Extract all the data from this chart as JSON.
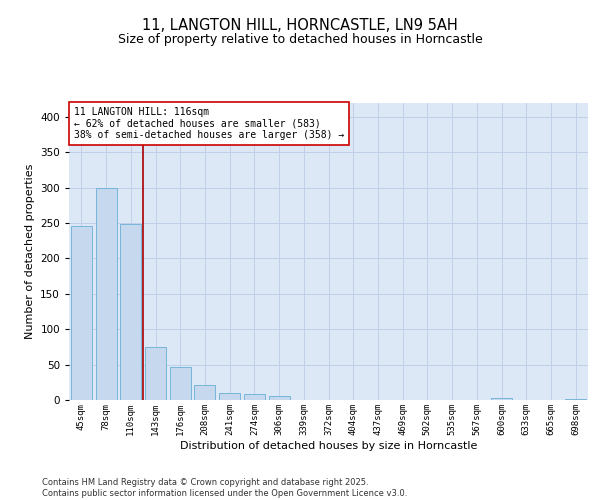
{
  "title_line1": "11, LANGTON HILL, HORNCASTLE, LN9 5AH",
  "title_line2": "Size of property relative to detached houses in Horncastle",
  "xlabel": "Distribution of detached houses by size in Horncastle",
  "ylabel": "Number of detached properties",
  "categories": [
    "45sqm",
    "78sqm",
    "110sqm",
    "143sqm",
    "176sqm",
    "208sqm",
    "241sqm",
    "274sqm",
    "306sqm",
    "339sqm",
    "372sqm",
    "404sqm",
    "437sqm",
    "469sqm",
    "502sqm",
    "535sqm",
    "567sqm",
    "600sqm",
    "633sqm",
    "665sqm",
    "698sqm"
  ],
  "values": [
    245,
    300,
    248,
    75,
    46,
    21,
    10,
    8,
    5,
    0,
    0,
    0,
    0,
    0,
    0,
    0,
    0,
    3,
    0,
    0,
    2
  ],
  "bar_color": "#c5d8ee",
  "bar_edge_color": "#6aaed6",
  "vline_color": "#aa0000",
  "annotation_text": "11 LANGTON HILL: 116sqm\n← 62% of detached houses are smaller (583)\n38% of semi-detached houses are larger (358) →",
  "annotation_box_facecolor": "#ffffff",
  "annotation_box_edgecolor": "#cc0000",
  "ylim_max": 420,
  "yticks": [
    0,
    50,
    100,
    150,
    200,
    250,
    300,
    350,
    400
  ],
  "grid_color": "#c0d0e8",
  "plot_bg_color": "#dce8f5",
  "fig_bg_color": "#ffffff",
  "footer_text": "Contains HM Land Registry data © Crown copyright and database right 2025.\nContains public sector information licensed under the Open Government Licence v3.0."
}
